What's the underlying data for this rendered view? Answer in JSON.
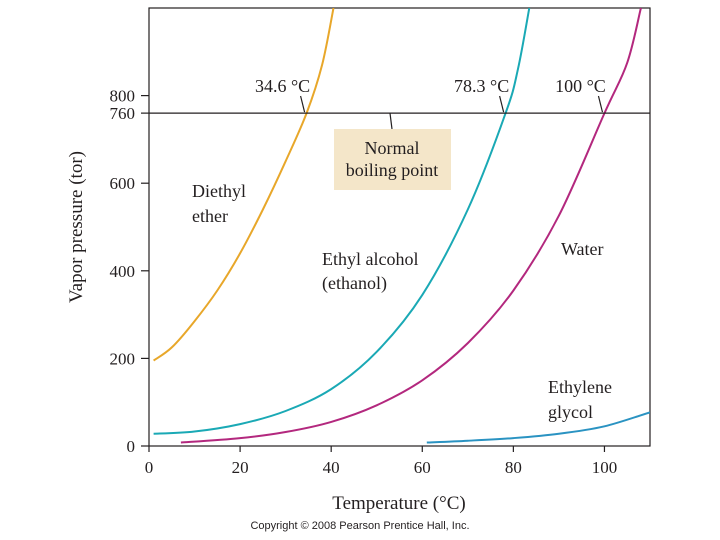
{
  "colors": {
    "ether": "#e8a72a",
    "ethanol": "#1aa9b5",
    "water": "#b3287e",
    "glycol": "#2a93c2",
    "callout_bg": "#f4e6c9",
    "axis": "#231f20"
  },
  "chart_data": {
    "type": "line",
    "xlabel": "Temperature (°C)",
    "ylabel": "Vapor pressure (tor)",
    "xlim": [
      0,
      110
    ],
    "ylim": [
      0,
      1000
    ],
    "x_ticks": [
      0,
      20,
      40,
      60,
      80,
      100
    ],
    "y_ticks": [
      0,
      200,
      400,
      600,
      760,
      800
    ],
    "reference_line": {
      "y": 760,
      "label_line1": "Normal",
      "label_line2": "boiling point"
    },
    "boiling_points": [
      {
        "label": "34.6 °C",
        "x": 34.6,
        "color_key": "ether"
      },
      {
        "label": "78.3 °C",
        "x": 78.3,
        "color_key": "ethanol"
      },
      {
        "label": "100 °C",
        "x": 100,
        "color_key": "water"
      }
    ],
    "series": [
      {
        "name": "Diethyl ether",
        "label_lines": [
          "Diethyl",
          "ether"
        ],
        "color_key": "ether",
        "x": [
          1,
          5,
          10,
          15,
          20,
          25,
          30,
          34.6,
          38,
          40.5
        ],
        "y": [
          195,
          225,
          285,
          355,
          440,
          540,
          650,
          760,
          870,
          1000
        ]
      },
      {
        "name": "Ethyl alcohol (ethanol)",
        "label_lines": [
          "Ethyl alcohol",
          "(ethanol)"
        ],
        "color_key": "ethanol",
        "x": [
          1,
          10,
          20,
          30,
          40,
          50,
          60,
          70,
          78.3,
          81,
          83.5
        ],
        "y": [
          28,
          33,
          50,
          80,
          130,
          215,
          345,
          540,
          760,
          860,
          1000
        ]
      },
      {
        "name": "Water",
        "label_lines": [
          "Water"
        ],
        "color_key": "water",
        "x": [
          7,
          20,
          30,
          40,
          50,
          60,
          70,
          80,
          90,
          100,
          105,
          108
        ],
        "y": [
          8,
          18,
          32,
          55,
          93,
          150,
          235,
          355,
          526,
          760,
          875,
          1000
        ]
      },
      {
        "name": "Ethylene glycol",
        "label_lines": [
          "Ethylene",
          "glycol"
        ],
        "color_key": "glycol",
        "x": [
          61,
          70,
          80,
          90,
          100,
          110
        ],
        "y": [
          8,
          12,
          18,
          28,
          45,
          77
        ]
      }
    ]
  },
  "copyright": "Copyright © 2008 Pearson Prentice Hall, Inc."
}
